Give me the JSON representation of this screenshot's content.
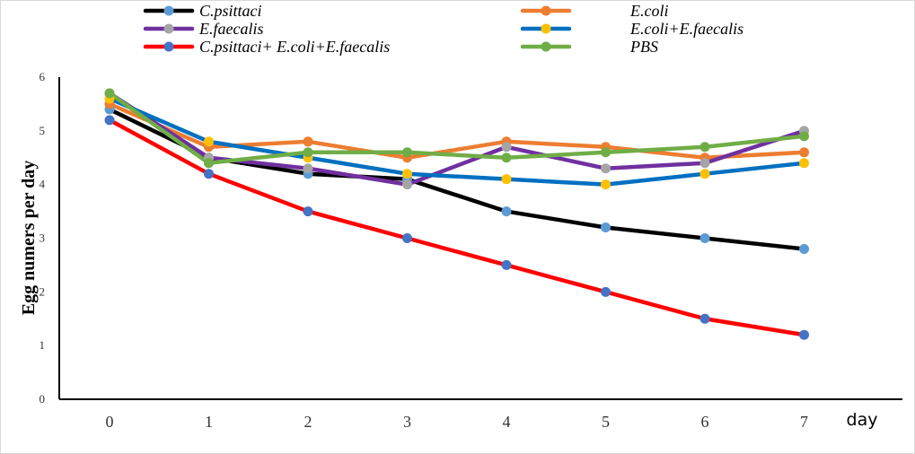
{
  "chart_data": {
    "type": "line",
    "title": "",
    "xlabel": "day",
    "ylabel": "Egg numers per day",
    "x": [
      0,
      1,
      2,
      3,
      4,
      5,
      6,
      7
    ],
    "ylim": [
      0,
      6
    ],
    "yticks": [
      0,
      1,
      2,
      3,
      4,
      5,
      6
    ],
    "grid": false,
    "legend_position": "top",
    "series": [
      {
        "name": "C.psittaci",
        "color": "#000000",
        "marker_color": "#5b9bd5",
        "values": [
          5.4,
          4.5,
          4.2,
          4.1,
          3.5,
          3.2,
          3.0,
          2.8
        ]
      },
      {
        "name": "E.coli",
        "color": "#ed7d31",
        "marker_color": "#ed7d31",
        "values": [
          5.5,
          4.7,
          4.8,
          4.5,
          4.8,
          4.7,
          4.5,
          4.6
        ]
      },
      {
        "name": "E.faecalis",
        "color": "#7030a0",
        "marker_color": "#a5a5a5",
        "values": [
          5.7,
          4.5,
          4.3,
          4.0,
          4.7,
          4.3,
          4.4,
          5.0
        ]
      },
      {
        "name": "E.coli+E.faecalis",
        "color": "#0070c0",
        "marker_color": "#ffc000",
        "values": [
          5.6,
          4.8,
          4.5,
          4.2,
          4.1,
          4.0,
          4.2,
          4.4
        ]
      },
      {
        "name": "C.psittaci+ E.coli+E.faecalis",
        "color": "#ff0000",
        "marker_color": "#4472c4",
        "values": [
          5.2,
          4.2,
          3.5,
          3.0,
          2.5,
          2.0,
          1.5,
          1.2
        ]
      },
      {
        "name": "PBS",
        "color": "#70ad47",
        "marker_color": "#70ad47",
        "values": [
          5.7,
          4.4,
          4.6,
          4.6,
          4.5,
          4.6,
          4.7,
          4.9
        ]
      }
    ]
  }
}
